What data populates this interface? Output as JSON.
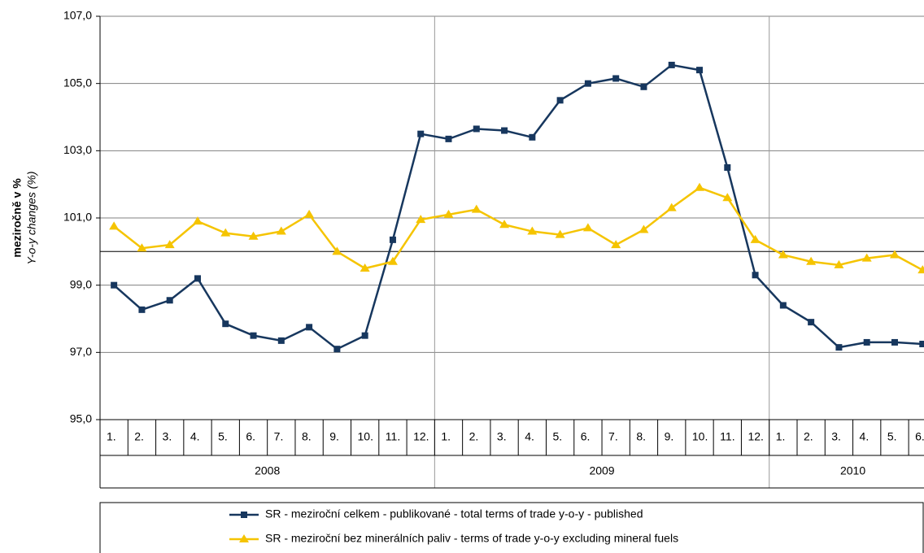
{
  "chart_data": {
    "type": "line",
    "y_label": "meziročně v %",
    "y_label_sub": "Y-o-y changes (%)",
    "categories": [
      "1.",
      "2.",
      "3.",
      "4.",
      "5.",
      "6.",
      "7.",
      "8.",
      "9.",
      "10.",
      "11.",
      "12.",
      "1.",
      "2.",
      "3.",
      "4.",
      "5.",
      "6.",
      "7.",
      "8.",
      "9.",
      "10.",
      "11.",
      "12.",
      "1.",
      "2.",
      "3.",
      "4.",
      "5.",
      "6."
    ],
    "category_groups": [
      {
        "label": "2008",
        "count": 12
      },
      {
        "label": "2009",
        "count": 12
      },
      {
        "label": "2010",
        "count": 6
      }
    ],
    "series": [
      {
        "name": "SR - meziroční celkem - publikované - total terms of trade y-o-y - published",
        "color": "#17375e",
        "marker": "square",
        "values": [
          99.0,
          98.27,
          98.55,
          99.2,
          97.85,
          97.5,
          97.35,
          97.75,
          97.1,
          97.5,
          100.35,
          103.5,
          103.35,
          103.65,
          103.6,
          103.4,
          104.5,
          105.0,
          105.15,
          104.9,
          105.55,
          105.4,
          102.5,
          99.3,
          98.4,
          97.9,
          97.15,
          97.3,
          97.3,
          97.25
        ]
      },
      {
        "name": "SR - meziroční bez minerálních paliv - terms of trade y-o-y excluding mineral fuels",
        "color": "#f5c400",
        "marker": "triangle",
        "values": [
          100.75,
          100.1,
          100.2,
          100.9,
          100.55,
          100.45,
          100.6,
          101.1,
          100.0,
          99.5,
          99.7,
          100.95,
          101.1,
          101.25,
          100.8,
          100.6,
          100.5,
          100.7,
          100.2,
          100.65,
          101.3,
          101.9,
          101.6,
          100.35,
          99.9,
          99.7,
          99.6,
          99.8,
          99.9,
          99.45
        ]
      }
    ],
    "ylim": [
      95,
      107
    ],
    "yticks": [
      {
        "value": 95,
        "label": "95,0"
      },
      {
        "value": 97,
        "label": "97,0"
      },
      {
        "value": 99,
        "label": "99,0"
      },
      {
        "value": 101,
        "label": "101,0"
      },
      {
        "value": 103,
        "label": "103,0"
      },
      {
        "value": 105,
        "label": "105,0"
      },
      {
        "value": 107,
        "label": "107,0"
      }
    ],
    "reference_line": 100,
    "grid": true
  }
}
